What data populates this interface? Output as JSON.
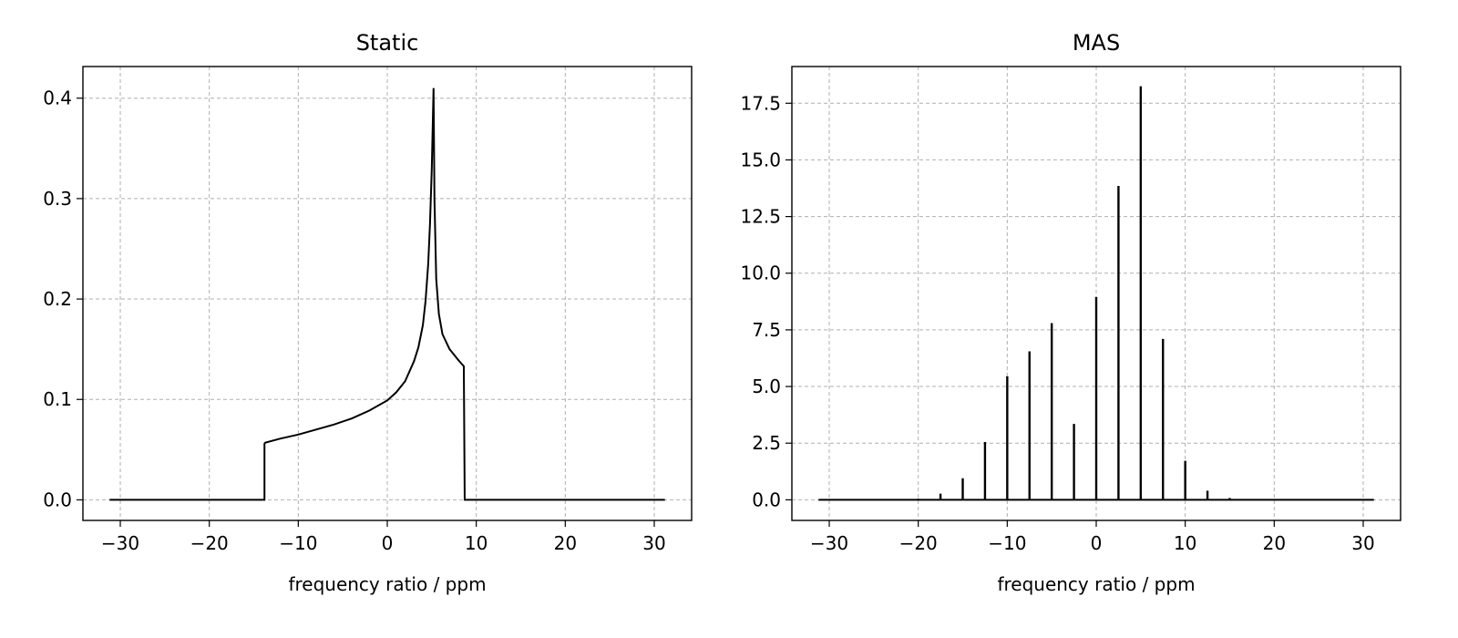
{
  "chart_data": [
    {
      "type": "line",
      "title": "Static",
      "xlabel": "frequency ratio / ppm",
      "ylabel": "",
      "xlim": [
        -34.2,
        34.2
      ],
      "ylim": [
        -0.0205,
        0.4315
      ],
      "xticks": [
        -30,
        -20,
        -10,
        0,
        10,
        20,
        30
      ],
      "xtick_labels": [
        "−30",
        "−20",
        "−10",
        "0",
        "10",
        "20",
        "30"
      ],
      "yticks": [
        0.0,
        0.1,
        0.2,
        0.3,
        0.4
      ],
      "ytick_labels": [
        "0.0",
        "0.1",
        "0.2",
        "0.3",
        "0.4"
      ],
      "grid": true,
      "series": [
        {
          "x": [
            -31.2,
            -13.8,
            -13.8,
            -13.7,
            -12,
            -10,
            -8,
            -6,
            -4,
            -2,
            0,
            1,
            2,
            3,
            3.5,
            4,
            4.3,
            4.6,
            4.8,
            5.0,
            5.1,
            5.2,
            5.3,
            5.5,
            5.8,
            6.2,
            7,
            8,
            8.6,
            8.7,
            31.2
          ],
          "y": [
            0,
            0,
            0.056,
            0.057,
            0.061,
            0.065,
            0.07,
            0.075,
            0.081,
            0.089,
            0.099,
            0.107,
            0.118,
            0.138,
            0.152,
            0.174,
            0.198,
            0.235,
            0.275,
            0.33,
            0.37,
            0.41,
            0.3,
            0.22,
            0.185,
            0.165,
            0.15,
            0.139,
            0.133,
            0,
            0
          ]
        }
      ]
    },
    {
      "type": "line",
      "title": "MAS",
      "xlabel": "frequency ratio / ppm",
      "ylabel": "",
      "xlim": [
        -34.2,
        34.2
      ],
      "ylim": [
        -0.91,
        19.12
      ],
      "xticks": [
        -30,
        -20,
        -10,
        0,
        10,
        20,
        30
      ],
      "xtick_labels": [
        "−30",
        "−20",
        "−10",
        "0",
        "10",
        "20",
        "30"
      ],
      "yticks": [
        0.0,
        2.5,
        5.0,
        7.5,
        10.0,
        12.5,
        15.0,
        17.5
      ],
      "ytick_labels": [
        "0.0",
        "2.5",
        "5.0",
        "7.5",
        "10.0",
        "12.5",
        "15.0",
        "17.5"
      ],
      "grid": true,
      "baseline_x": [
        -31.2,
        31.2
      ],
      "series": [
        {
          "x": [
            -22.5,
            -20,
            -17.5,
            -15,
            -12.5,
            -10,
            -7.5,
            -5,
            -2.5,
            0,
            2.5,
            5,
            7.5,
            10,
            12.5,
            15,
            17.5
          ],
          "y": [
            0.02,
            0.05,
            0.27,
            0.95,
            2.55,
            5.45,
            6.55,
            7.8,
            3.35,
            8.95,
            13.85,
            18.25,
            7.1,
            1.72,
            0.4,
            0.08,
            0.02
          ]
        }
      ]
    }
  ]
}
